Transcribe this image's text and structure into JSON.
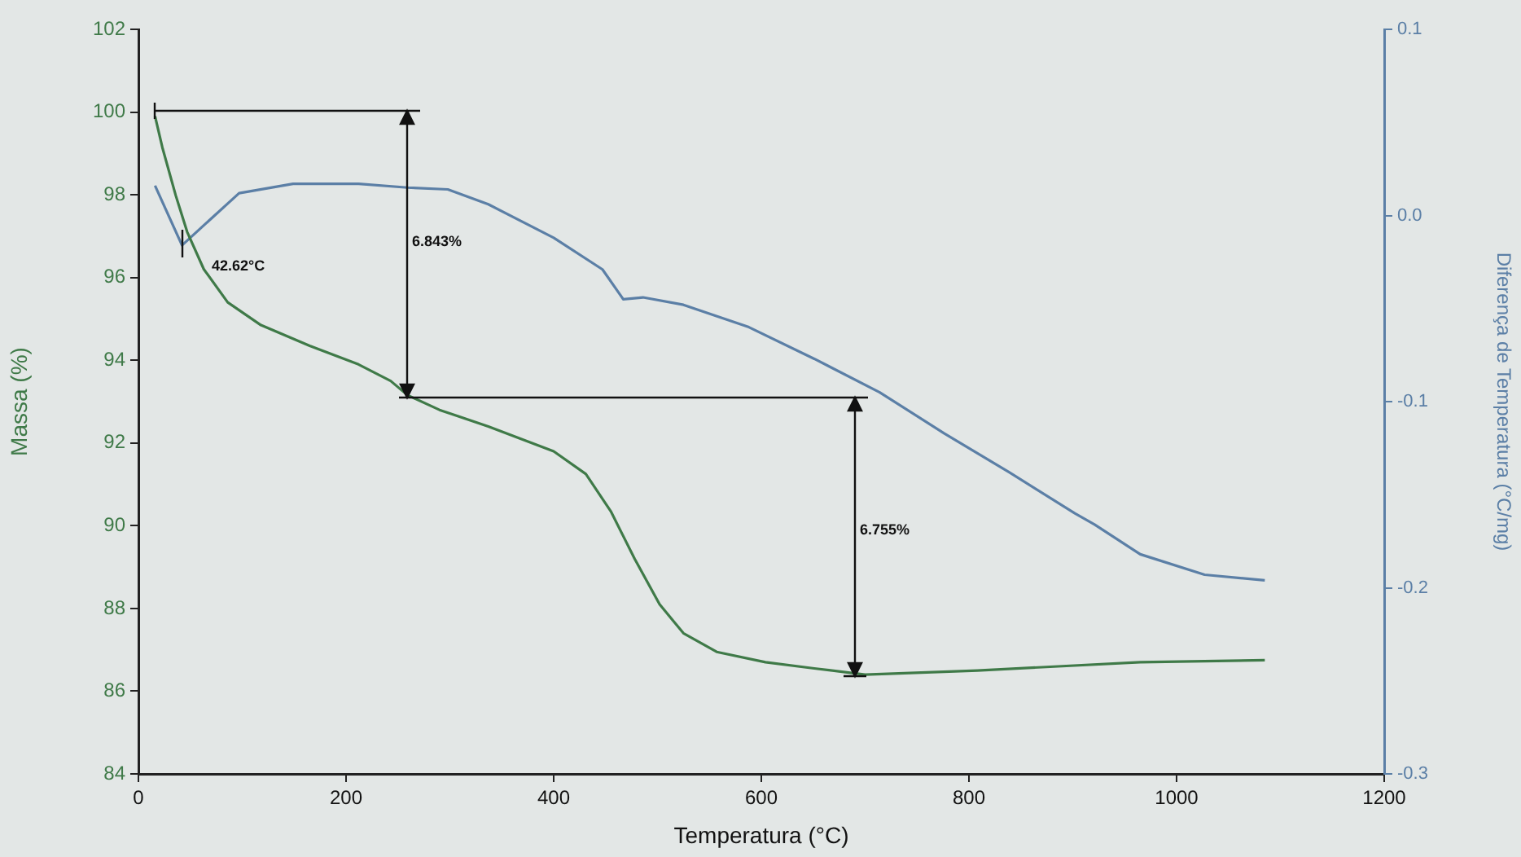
{
  "chart_data": {
    "type": "line",
    "xlabel": "Temperatura (°C)",
    "ylabel": "Massa (%)",
    "y2label": "Diferença de Temperatura (°C/mg)",
    "xlim": [
      0,
      1200
    ],
    "xticks": [
      0,
      200,
      400,
      600,
      800,
      1000,
      1200
    ],
    "ylim": [
      84,
      102
    ],
    "yticks": [
      84,
      86,
      88,
      90,
      92,
      94,
      96,
      98,
      100,
      102
    ],
    "y2lim": [
      -0.3,
      0.1
    ],
    "y2ticks": [
      {
        "value": -0.3,
        "label": "-0.3"
      },
      {
        "value": -0.2,
        "label": "-0.2"
      },
      {
        "value": -0.1,
        "label": "-0.1"
      },
      {
        "value": 0,
        "label": "0.0"
      },
      {
        "value": 0.1,
        "label": "0.1"
      }
    ],
    "grid": false,
    "legend": false,
    "marker": "none",
    "line_style": "solid",
    "series": [
      {
        "color": "#3f7a48",
        "x": [
          16,
          23,
          36,
          47,
          63,
          86,
          118,
          165,
          212,
          243,
          259,
          290,
          337,
          400,
          431,
          455,
          478,
          502,
          525,
          557,
          604,
          651,
          700,
          808,
          886,
          965,
          1085
        ],
        "values": [
          99.9,
          99.15,
          97.98,
          97.1,
          96.2,
          95.4,
          94.85,
          94.35,
          93.9,
          93.5,
          93.16,
          92.8,
          92.4,
          91.8,
          91.25,
          90.35,
          89.2,
          88.1,
          87.4,
          86.95,
          86.7,
          86.55,
          86.4,
          86.5,
          86.6,
          86.7,
          86.75
        ]
      },
      {
        "color": "#5b7fa6",
        "axis": "y2",
        "x": [
          16,
          42,
          97,
          149,
          212,
          259,
          298,
          337,
          400,
          447,
          467,
          486,
          525,
          588,
          651,
          714,
          776,
          839,
          902,
          921,
          965,
          1027,
          1085
        ],
        "values": [
          0.016,
          -0.016,
          0.012,
          0.017,
          0.017,
          0.015,
          0.014,
          0.006,
          -0.012,
          -0.029,
          -0.045,
          -0.044,
          -0.048,
          -0.06,
          -0.077,
          -0.095,
          -0.117,
          -0.138,
          -0.16,
          -0.166,
          -0.182,
          -0.193,
          -0.196
        ]
      }
    ],
    "annotations": [
      "42.62°C",
      "6.843%",
      "6.755%"
    ]
  }
}
